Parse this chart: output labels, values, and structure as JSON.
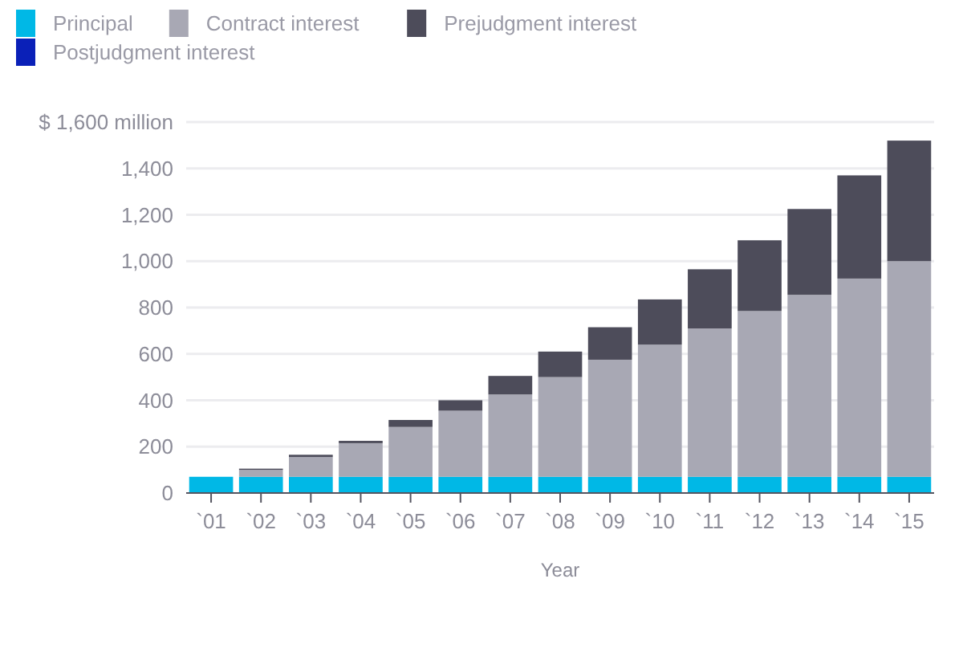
{
  "chart_data": {
    "type": "bar",
    "stacked": true,
    "xlabel": "Year",
    "categories": [
      "`01",
      "`02",
      "`03",
      "`04",
      "`05",
      "`06",
      "`07",
      "`08",
      "`09",
      "`10",
      "`11",
      "`12",
      "`13",
      "`14",
      "`15"
    ],
    "series": [
      {
        "name": "Principal",
        "color": "#00b8e6",
        "values": [
          70,
          70,
          70,
          70,
          70,
          70,
          70,
          70,
          70,
          70,
          70,
          70,
          70,
          70,
          70
        ]
      },
      {
        "name": "Contract interest",
        "color": "#a8a8b4",
        "values": [
          0,
          30,
          85,
          145,
          215,
          285,
          355,
          430,
          505,
          570,
          640,
          715,
          785,
          855,
          930
        ]
      },
      {
        "name": "Prejudgment interest",
        "color": "#4d4c5a",
        "values": [
          0,
          5,
          10,
          10,
          30,
          45,
          80,
          110,
          140,
          195,
          255,
          305,
          370,
          445,
          520
        ]
      },
      {
        "name": "Postjudgment interest",
        "color": "#0a20b8",
        "values": [
          0,
          0,
          0,
          0,
          0,
          0,
          0,
          0,
          0,
          0,
          0,
          0,
          0,
          0,
          0
        ]
      }
    ],
    "ylim": [
      0,
      1600
    ],
    "yticks": [
      0,
      200,
      400,
      600,
      800,
      {
        "value": 1000,
        "label": "1,000"
      },
      {
        "value": 1200,
        "label": "1,200"
      },
      {
        "value": 1400,
        "label": "1,400"
      },
      {
        "value": 1600,
        "label": "$ 1,600 million"
      }
    ],
    "grid": "y",
    "legend": "top"
  }
}
